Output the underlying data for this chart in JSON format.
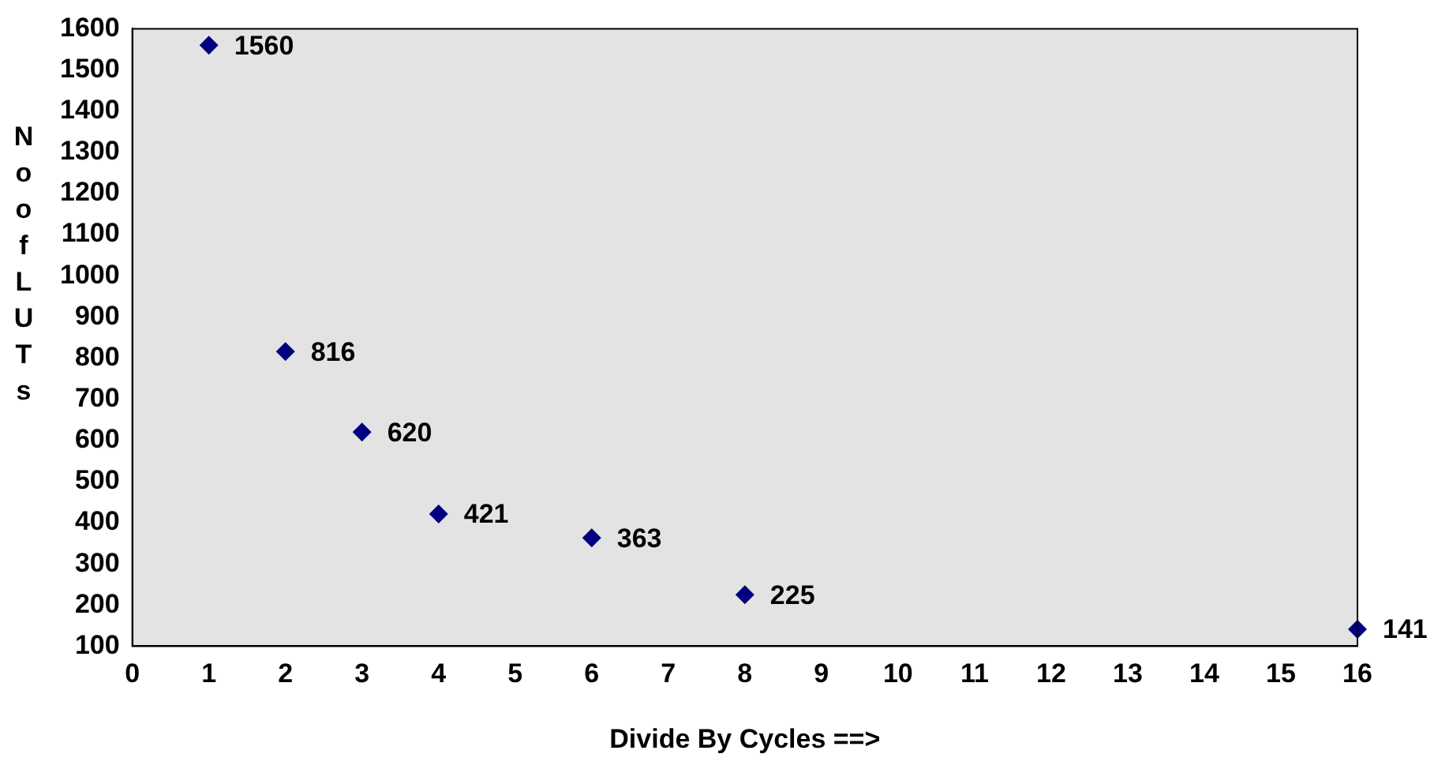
{
  "chart_data": {
    "type": "scatter",
    "xlabel": "Divide By Cycles ==>",
    "ylabel": "No of LUTs",
    "x": [
      1,
      2,
      3,
      4,
      6,
      8,
      16
    ],
    "series": [
      {
        "color": "#000080",
        "values": [
          1560,
          816,
          620,
          421,
          363,
          225,
          141
        ]
      }
    ],
    "xlim": [
      0,
      16
    ],
    "xticks": [
      0,
      1,
      2,
      3,
      4,
      5,
      6,
      7,
      8,
      9,
      10,
      11,
      12,
      13,
      14,
      15,
      16
    ],
    "ylim": [
      100,
      1600
    ],
    "yticks": [
      100,
      200,
      300,
      400,
      500,
      600,
      700,
      800,
      900,
      1000,
      1100,
      1200,
      1300,
      1400,
      1500,
      1600
    ],
    "marker": "diamond",
    "data_labels": true,
    "grid": false,
    "legend": false
  }
}
